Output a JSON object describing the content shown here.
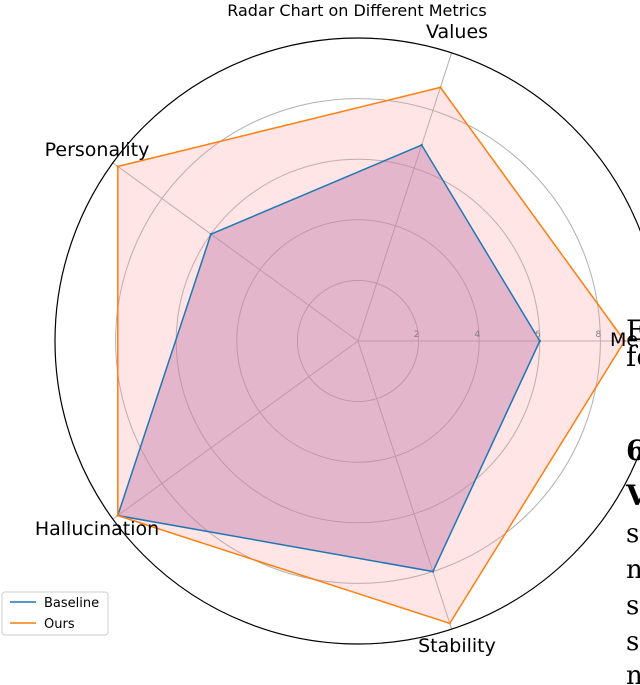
{
  "chart_data": {
    "type": "radar",
    "title": "Radar Chart on Different Metrics",
    "axes": [
      "Memory",
      "Values",
      "Personality",
      "Hallucination",
      "Stability"
    ],
    "axis_label_display": [
      "Me",
      "Values",
      "Personality",
      "Hallucination",
      "Stability"
    ],
    "r_range": [
      0,
      10
    ],
    "r_ticks": [
      2,
      4,
      6,
      8
    ],
    "r_tick_labels": [
      "2",
      "4",
      "6",
      "8"
    ],
    "grid": true,
    "legend_position": "lower-left",
    "series": [
      {
        "name": "Baseline",
        "color": "#1f77b4",
        "values": [
          6.0,
          6.8,
          6.0,
          9.8,
          8.0
        ]
      },
      {
        "name": "Ours",
        "color": "#ff7f0e",
        "values": [
          8.8,
          8.8,
          9.8,
          9.8,
          9.8
        ]
      }
    ],
    "fill_color": "#ff9896"
  },
  "background_text": {
    "cut_lines": [
      "E",
      "fc",
      "6",
      "V",
      "s",
      "n",
      "s",
      "s",
      "n"
    ]
  }
}
